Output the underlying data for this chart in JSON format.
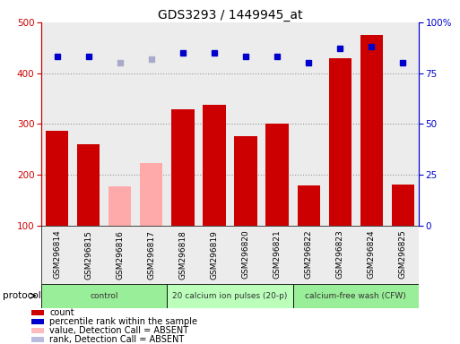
{
  "title": "GDS3293 / 1449945_at",
  "samples": [
    "GSM296814",
    "GSM296815",
    "GSM296816",
    "GSM296817",
    "GSM296818",
    "GSM296819",
    "GSM296820",
    "GSM296821",
    "GSM296822",
    "GSM296823",
    "GSM296824",
    "GSM296825"
  ],
  "count_values": [
    287,
    260,
    177,
    222,
    328,
    338,
    276,
    300,
    178,
    430,
    475,
    181
  ],
  "count_absent": [
    false,
    false,
    true,
    true,
    false,
    false,
    false,
    false,
    false,
    false,
    false,
    false
  ],
  "percentile_values": [
    83,
    83,
    80,
    82,
    85,
    85,
    83,
    83,
    80,
    87,
    88,
    80
  ],
  "percentile_absent": [
    false,
    false,
    true,
    true,
    false,
    false,
    false,
    false,
    false,
    false,
    false,
    false
  ],
  "ylim_left": [
    100,
    500
  ],
  "ylim_right": [
    0,
    100
  ],
  "yticks_left": [
    100,
    200,
    300,
    400,
    500
  ],
  "yticks_right": [
    0,
    25,
    50,
    75,
    100
  ],
  "ytick_labels_right": [
    "0",
    "25",
    "50",
    "75",
    "100%"
  ],
  "color_bar_normal": "#cc0000",
  "color_bar_absent": "#ffaaaa",
  "color_dot_normal": "#0000cc",
  "color_dot_absent": "#aaaacc",
  "color_grid": "#888888",
  "color_bg_sample": "#dddddd",
  "protocol_groups": [
    {
      "label": "control",
      "indices": [
        0,
        1,
        2,
        3
      ],
      "color": "#99ee99"
    },
    {
      "label": "20 calcium ion pulses (20-p)",
      "indices": [
        4,
        5,
        6,
        7
      ],
      "color": "#bbffbb"
    },
    {
      "label": "calcium-free wash (CFW)",
      "indices": [
        8,
        9,
        10,
        11
      ],
      "color": "#99ee99"
    }
  ],
  "legend_items": [
    {
      "label": "count",
      "color": "#cc0000"
    },
    {
      "label": "percentile rank within the sample",
      "color": "#0000cc"
    },
    {
      "label": "value, Detection Call = ABSENT",
      "color": "#ffbbbb"
    },
    {
      "label": "rank, Detection Call = ABSENT",
      "color": "#bbbbdd"
    }
  ]
}
